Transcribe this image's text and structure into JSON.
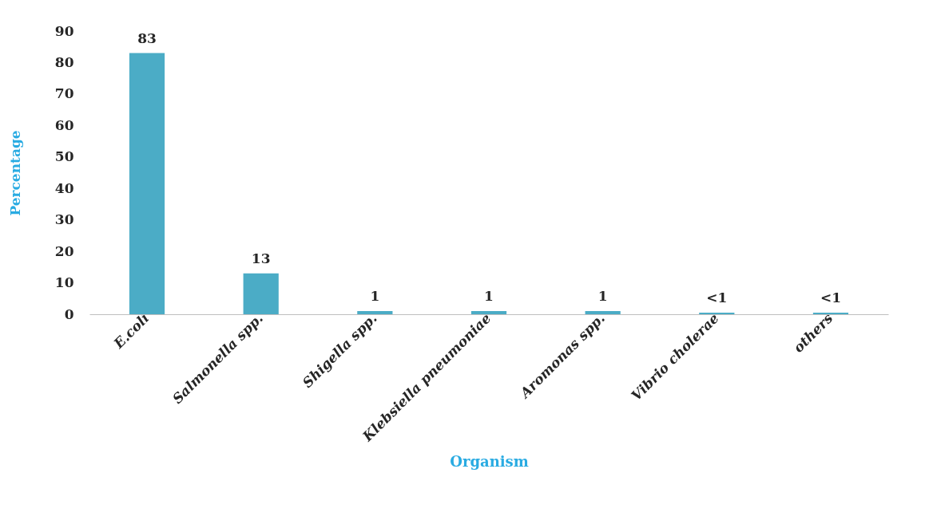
{
  "chart_data": {
    "type": "bar",
    "xlabel": "Organism",
    "ylabel": "Percentage",
    "categories": [
      "E.coli",
      "Salmonella spp.",
      "Shigella spp.",
      "Klebsiella pneumoniae",
      "Aromonas spp.",
      "Vibrio cholerae",
      "others"
    ],
    "values": [
      83,
      13,
      1,
      1,
      1,
      0.5,
      0.5
    ],
    "value_labels": [
      "83",
      "13",
      "1",
      "1",
      "1",
      "<1",
      "<1"
    ],
    "color": "#4bacc6",
    "ylim": [
      0,
      90
    ],
    "yticks": [
      0,
      10,
      20,
      30,
      40,
      50,
      60,
      70,
      80,
      90
    ],
    "grid": false
  }
}
